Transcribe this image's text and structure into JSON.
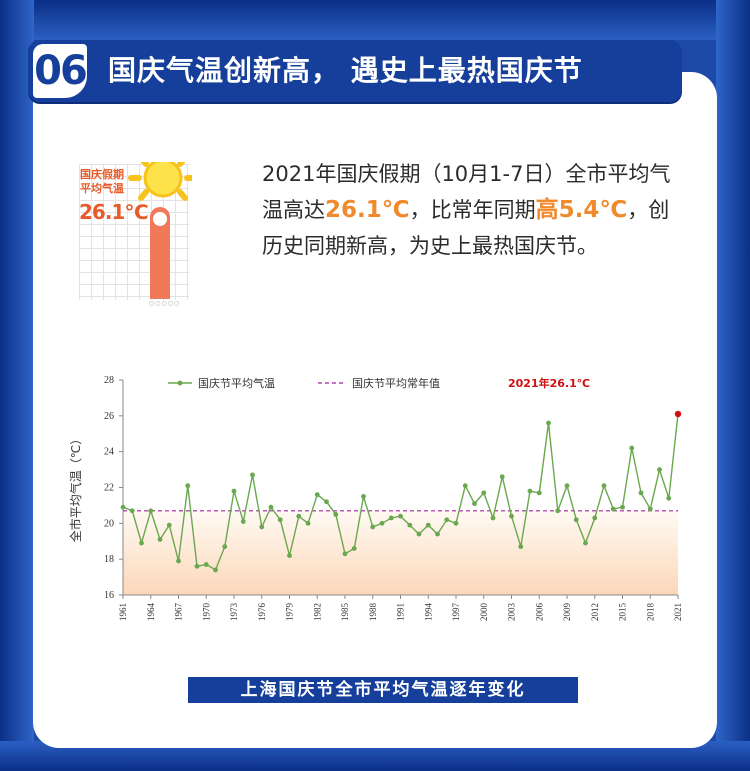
{
  "header": {
    "number": "06",
    "title": "国庆气温创新高，  遇史上最热国庆节"
  },
  "thumbnail": {
    "line1": "国庆假期",
    "line2": "平均气温",
    "temp": "26.1℃",
    "dots": "○○○○○"
  },
  "description": {
    "part1": "2021年国庆假期（10月1-7日）全市平均气温高达",
    "hl1": "26.1℃",
    "part2": "，比常年同期",
    "hl2": "高5.4℃",
    "part3": "，创历史同期新高，为史上最热国庆节。"
  },
  "caption": "上海国庆节全市平均气温逐年变化",
  "colors": {
    "brand_blue": "#153f9a",
    "highlight_orange": "#f08a2c",
    "series_green": "#6aa84f",
    "normal_purple": "#a020a0",
    "record_red": "#d01010"
  },
  "chart_data": {
    "type": "line",
    "ylabel": "全市平均气温（℃）",
    "xlabel": "",
    "ylim": [
      16,
      28
    ],
    "yticks": [
      16,
      18,
      20,
      22,
      24,
      26,
      28
    ],
    "xlim": [
      1961,
      2021
    ],
    "xticks": [
      1961,
      1964,
      1967,
      1970,
      1973,
      1976,
      1979,
      1982,
      1985,
      1988,
      1991,
      1994,
      1997,
      2000,
      2003,
      2006,
      2009,
      2012,
      2015,
      2018,
      2021
    ],
    "legend": {
      "series_label": "国庆节平均气温",
      "normal_label": "国庆节平均常年值",
      "annotation": "2021年26.1℃",
      "placement": "top"
    },
    "normal_value": 20.7,
    "series": [
      {
        "name": "国庆节平均气温",
        "x": [
          1961,
          1962,
          1963,
          1964,
          1965,
          1966,
          1967,
          1968,
          1969,
          1970,
          1971,
          1972,
          1973,
          1974,
          1975,
          1976,
          1977,
          1978,
          1979,
          1980,
          1981,
          1982,
          1983,
          1984,
          1985,
          1986,
          1987,
          1988,
          1989,
          1990,
          1991,
          1992,
          1993,
          1994,
          1995,
          1996,
          1997,
          1998,
          1999,
          2000,
          2001,
          2002,
          2003,
          2004,
          2005,
          2006,
          2007,
          2008,
          2009,
          2010,
          2011,
          2012,
          2013,
          2014,
          2015,
          2016,
          2017,
          2018,
          2019,
          2020,
          2021
        ],
        "values": [
          20.9,
          20.7,
          18.9,
          20.7,
          19.1,
          19.9,
          17.9,
          22.1,
          17.6,
          17.7,
          17.4,
          18.7,
          21.8,
          20.1,
          22.7,
          19.8,
          20.9,
          20.2,
          18.2,
          20.4,
          20.0,
          21.6,
          21.2,
          20.5,
          18.3,
          18.6,
          21.5,
          19.8,
          20.0,
          20.3,
          20.4,
          19.9,
          19.4,
          19.9,
          19.4,
          20.2,
          20.0,
          22.1,
          21.1,
          21.7,
          20.3,
          22.6,
          20.4,
          18.7,
          21.8,
          21.7,
          25.6,
          20.7,
          22.1,
          20.2,
          18.9,
          20.3,
          22.1,
          20.8,
          20.9,
          24.2,
          21.7,
          20.8,
          23.0,
          21.4,
          26.1
        ]
      }
    ],
    "grid": false
  }
}
